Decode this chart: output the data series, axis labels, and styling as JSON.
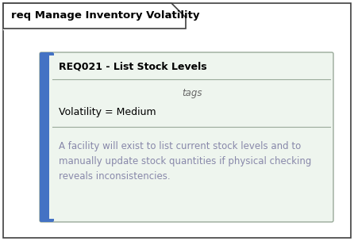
{
  "background_color": "#ffffff",
  "outer_border_color": "#3f3f3f",
  "outer_bg": "#ffffff",
  "diagram_title": "req Manage Inventory Volatility",
  "diagram_title_fontsize": 9.5,
  "card_bg": "#eef5ee",
  "card_border_color": "#9aaa9a",
  "blue_bar_color": "#4472c4",
  "title_text": "REQ021 - List Stock Levels",
  "title_fontsize": 9,
  "title_color": "#000000",
  "tags_label": "tags",
  "tags_fontsize": 8.5,
  "tags_color": "#666666",
  "tag_line": "Volatility = Medium",
  "tag_fontsize": 9,
  "tag_color": "#000000",
  "notes_text": "A facility will exist to list current stock levels and to\nmanually update stock quantities if physical checking\nreveals inconsistencies.",
  "notes_fontsize": 8.5,
  "notes_color": "#8888aa",
  "separator_color": "#9aaa9a"
}
